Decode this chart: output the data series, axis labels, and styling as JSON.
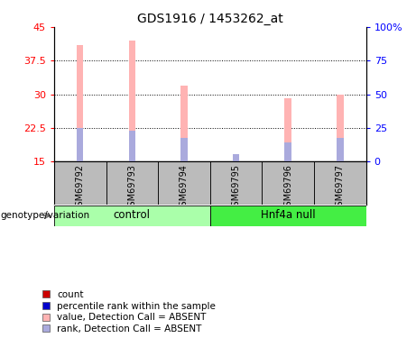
{
  "title": "GDS1916 / 1453262_at",
  "samples": [
    "GSM69792",
    "GSM69793",
    "GSM69794",
    "GSM69795",
    "GSM69796",
    "GSM69797"
  ],
  "bar_tops": [
    41.0,
    42.0,
    32.0,
    16.2,
    29.2,
    30.0
  ],
  "bar_bottoms": [
    15.0,
    15.0,
    15.0,
    15.0,
    15.0,
    15.0
  ],
  "blue_tops": [
    22.4,
    21.8,
    20.3,
    16.7,
    19.2,
    20.2
  ],
  "blue_bottoms": [
    15.0,
    15.0,
    15.0,
    15.0,
    15.0,
    15.0
  ],
  "pink_color": "#FFB3B3",
  "blue_color": "#AAAADD",
  "bar_width": 0.13,
  "ylim_left": [
    15,
    45
  ],
  "ylim_right": [
    0,
    100
  ],
  "yticks_left": [
    15,
    22.5,
    30,
    37.5,
    45
  ],
  "ytick_labels_left": [
    "15",
    "22.5",
    "30",
    "37.5",
    "45"
  ],
  "yticks_right": [
    0,
    25,
    50,
    75,
    100
  ],
  "ytick_labels_right": [
    "0",
    "25",
    "50",
    "75",
    "100%"
  ],
  "dotted_lines": [
    22.5,
    30.0,
    37.5
  ],
  "control_color_light": "#AAFFAA",
  "control_color_dark": "#44EE44",
  "sample_bg": "#BBBBBB",
  "control_label": "control",
  "hnf4a_label": "Hnf4a null",
  "genotype_label": "genotype/variation",
  "legend_items": [
    {
      "label": "count",
      "color": "#CC0000"
    },
    {
      "label": "percentile rank within the sample",
      "color": "#0000CC"
    },
    {
      "label": "value, Detection Call = ABSENT",
      "color": "#FFB3B3"
    },
    {
      "label": "rank, Detection Call = ABSENT",
      "color": "#AAAADD"
    }
  ]
}
